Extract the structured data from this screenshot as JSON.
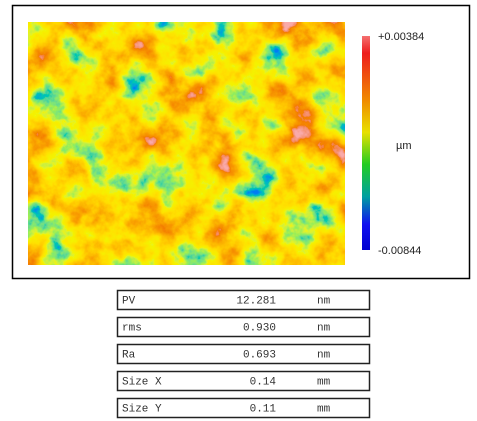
{
  "scale": {
    "max": "+0.00384",
    "unit": "µm",
    "min": "-0.00844"
  },
  "table": {
    "rows": [
      [
        "PV",
        "12.281",
        "nm"
      ],
      [
        "rms",
        "0.930",
        "nm"
      ],
      [
        "Ra",
        "0.693",
        "nm"
      ],
      [
        "Size X",
        "0.14",
        "mm"
      ],
      [
        "Size Y",
        "0.11",
        "mm"
      ]
    ]
  }
}
